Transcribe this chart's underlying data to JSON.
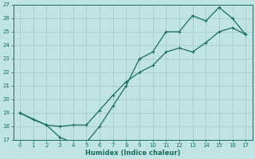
{
  "curve1_x": [
    0,
    1,
    2,
    3,
    4,
    5,
    6,
    7,
    8,
    9,
    10,
    11,
    12,
    13,
    14,
    15,
    16,
    17
  ],
  "curve1_y": [
    19.0,
    18.5,
    18.1,
    17.2,
    16.8,
    16.8,
    18.0,
    19.5,
    21.0,
    23.0,
    23.5,
    25.0,
    25.0,
    26.2,
    25.8,
    26.8,
    26.0,
    24.8
  ],
  "curve2_x": [
    0,
    2,
    3,
    4,
    5,
    6,
    7,
    8,
    9,
    10,
    11,
    12,
    13,
    14,
    15,
    16,
    17
  ],
  "curve2_y": [
    19.0,
    18.1,
    18.0,
    18.1,
    18.1,
    19.2,
    20.3,
    21.3,
    22.0,
    22.5,
    23.5,
    23.8,
    23.5,
    24.2,
    25.0,
    25.3,
    24.8
  ],
  "line_color": "#1a6b5a",
  "bg_color": "#c0e4e4",
  "grid_color": "#a8cccc",
  "xlabel": "Humidex (Indice chaleur)",
  "ylim": [
    17,
    27
  ],
  "xlim": [
    -0.5,
    17.5
  ],
  "yticks": [
    17,
    18,
    19,
    20,
    21,
    22,
    23,
    24,
    25,
    26,
    27
  ],
  "xticks": [
    0,
    1,
    2,
    3,
    4,
    5,
    6,
    7,
    8,
    9,
    10,
    11,
    12,
    13,
    14,
    15,
    16,
    17
  ],
  "tick_fontsize": 5.0,
  "xlabel_fontsize": 6.0
}
